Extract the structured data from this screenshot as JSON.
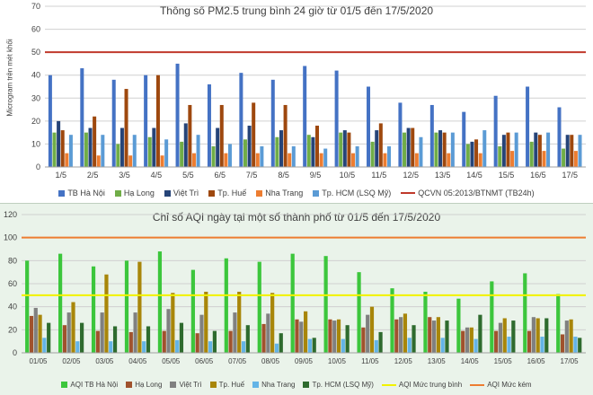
{
  "chart_data": [
    {
      "type": "bar",
      "title": "Thông số PM2.5 trung bình 24 giờ từ 01/5 đến 17/5/2020",
      "ylabel": "Microgram trên mét khối",
      "xlabel": "",
      "ylim": [
        0,
        70
      ],
      "yticks": [
        0,
        10,
        20,
        30,
        40,
        50,
        60,
        70
      ],
      "grid": true,
      "categories": [
        "1/5",
        "2/5",
        "3/5",
        "4/5",
        "5/5",
        "6/5",
        "7/5",
        "8/5",
        "9/5",
        "10/5",
        "11/5",
        "12/5",
        "13/5",
        "14/5",
        "15/5",
        "16/5",
        "17/5"
      ],
      "series": [
        {
          "name": "TB Hà Nội",
          "color": "#4472c4",
          "values": [
            40,
            43,
            38,
            40,
            45,
            36,
            41,
            38,
            44,
            42,
            35,
            28,
            27,
            24,
            31,
            35,
            26
          ]
        },
        {
          "name": "Hạ Long",
          "color": "#70ad47",
          "values": [
            15,
            15,
            10,
            13,
            11,
            9,
            12,
            13,
            14,
            15,
            11,
            15,
            15,
            10,
            9,
            11,
            8
          ]
        },
        {
          "name": "Việt Trì",
          "color": "#264478",
          "values": [
            20,
            17,
            17,
            17,
            19,
            17,
            18,
            16,
            13,
            16,
            16,
            17,
            16,
            11,
            14,
            15,
            14
          ]
        },
        {
          "name": "Tp. Huế",
          "color": "#9e480e",
          "values": [
            16,
            22,
            34,
            40,
            27,
            27,
            28,
            27,
            18,
            15,
            19,
            17,
            15,
            12,
            15,
            14,
            14
          ]
        },
        {
          "name": "Nha Trang",
          "color": "#ed7d31",
          "values": [
            6,
            5,
            5,
            5,
            6,
            6,
            6,
            6,
            6,
            6,
            6,
            6,
            6,
            6,
            7,
            7,
            7
          ]
        },
        {
          "name": "Tp. HCM (LSQ Mỹ)",
          "color": "#5b9bd5",
          "values": [
            14,
            14,
            14,
            12,
            14,
            10,
            9,
            9,
            8,
            9,
            9,
            13,
            15,
            16,
            15,
            15,
            14
          ]
        }
      ],
      "reference_lines": [
        {
          "name": "QCVN 05:2013/BTNMT (TB24h)",
          "value": 50,
          "color": "#c0392b"
        }
      ]
    },
    {
      "type": "bar",
      "title": "Chỉ số AQI ngày tại một số thành phố từ 01/5 đến 17/5/2020",
      "xlabel": "",
      "ylabel": "",
      "ylim": [
        0,
        120
      ],
      "yticks": [
        0,
        20,
        40,
        60,
        80,
        100,
        120
      ],
      "grid": true,
      "categories": [
        "01/05",
        "02/05",
        "03/05",
        "04/05",
        "05/05",
        "06/05",
        "07/05",
        "08/05",
        "09/05",
        "10/05",
        "11/05",
        "12/05",
        "13/05",
        "14/05",
        "15/05",
        "16/05",
        "17/05"
      ],
      "series": [
        {
          "name": "AQI TB Hà Nội",
          "color": "#3cc63c",
          "values": [
            80,
            86,
            75,
            80,
            88,
            72,
            82,
            79,
            86,
            84,
            70,
            56,
            53,
            47,
            62,
            69,
            51
          ]
        },
        {
          "name": "Hạ Long",
          "color": "#a0522d",
          "values": [
            32,
            24,
            19,
            18,
            19,
            17,
            19,
            25,
            29,
            29,
            22,
            29,
            31,
            19,
            19,
            19,
            16
          ]
        },
        {
          "name": "Việt Trì",
          "color": "#808080",
          "values": [
            39,
            35,
            35,
            35,
            38,
            33,
            35,
            34,
            27,
            28,
            33,
            31,
            28,
            22,
            26,
            31,
            28
          ]
        },
        {
          "name": "Tp. Huế",
          "color": "#a8860a",
          "values": [
            33,
            44,
            68,
            79,
            52,
            53,
            53,
            52,
            36,
            29,
            40,
            34,
            31,
            22,
            30,
            30,
            29
          ]
        },
        {
          "name": "Nha Trang",
          "color": "#64b4e6",
          "values": [
            13,
            10,
            10,
            10,
            11,
            10,
            10,
            8,
            12,
            12,
            11,
            13,
            13,
            12,
            14,
            14,
            14
          ]
        },
        {
          "name": "Tp. HCM (LSQ Mỹ)",
          "color": "#2e6b2e",
          "values": [
            26,
            26,
            23,
            23,
            26,
            19,
            24,
            17,
            13,
            24,
            18,
            24,
            28,
            33,
            28,
            30,
            13
          ]
        }
      ],
      "reference_lines": [
        {
          "name": "AQI Mức trung bình",
          "value": 50,
          "color": "#f2f200"
        },
        {
          "name": "AQI Mức kém",
          "value": 100,
          "color": "#ed7d31"
        }
      ]
    }
  ]
}
